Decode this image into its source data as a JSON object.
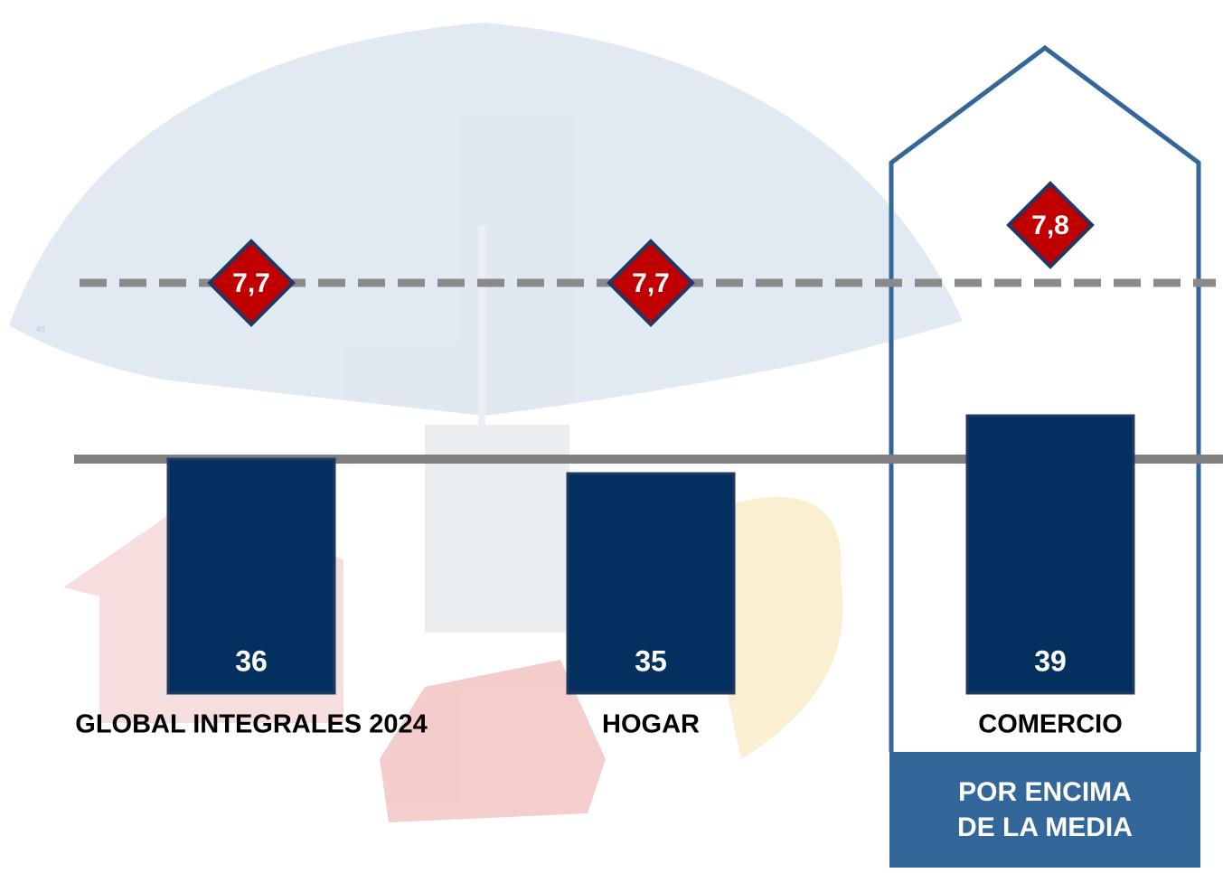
{
  "chart_data": {
    "type": "bar",
    "categories": [
      "GLOBAL INTEGRALES 2024",
      "HOGAR",
      "COMERCIO"
    ],
    "series": [
      {
        "color": "#04305f",
        "values": [
          36,
          35,
          39
        ]
      },
      {
        "color": "#c00000",
        "values": [
          7.7,
          7.7,
          7.8
        ],
        "value_labels": [
          "7,7",
          "7,7",
          "7,8"
        ]
      }
    ],
    "badge": "POR ENCIMA DE LA MEDIA",
    "page_number": "45"
  }
}
